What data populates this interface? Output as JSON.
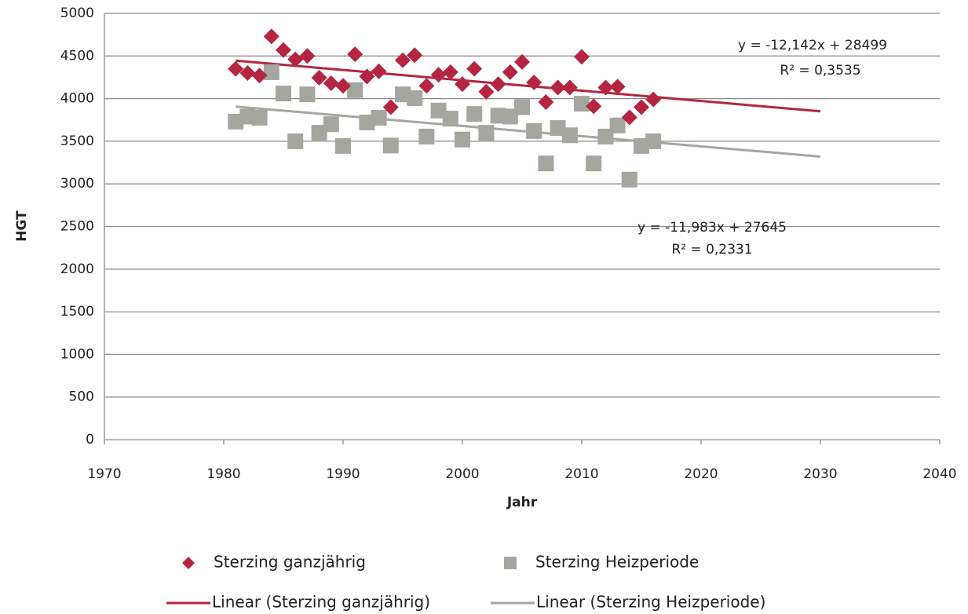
{
  "chart_data": {
    "type": "scatter",
    "x_label": "Jahr",
    "y_label": "HGT",
    "xlim": [
      1970,
      2040
    ],
    "xticks": [
      1970,
      1980,
      1990,
      2000,
      2010,
      2020,
      2030,
      2040
    ],
    "ylim": [
      0,
      5000
    ],
    "yticks": [
      0,
      500,
      1000,
      1500,
      2000,
      2500,
      3000,
      3500,
      4000,
      4500,
      5000
    ],
    "grid": true,
    "series": [
      {
        "name": "Sterzing ganzjährig",
        "color": "#b5253f",
        "marker": "diamond",
        "x": [
          1981,
          1982,
          1983,
          1984,
          1985,
          1986,
          1987,
          1988,
          1989,
          1990,
          1991,
          1992,
          1993,
          1994,
          1995,
          1996,
          1997,
          1998,
          1999,
          2000,
          2001,
          2002,
          2003,
          2004,
          2005,
          2006,
          2007,
          2008,
          2009,
          2010,
          2011,
          2012,
          2013,
          2014,
          2015,
          2016
        ],
        "values": [
          4350,
          4300,
          4270,
          4730,
          4570,
          4460,
          4500,
          4245,
          4180,
          4150,
          4520,
          4260,
          4320,
          3900,
          4450,
          4510,
          4150,
          4280,
          4310,
          4170,
          4350,
          4080,
          4170,
          4310,
          4430,
          4190,
          3960,
          4130,
          4130,
          4490,
          3910,
          4130,
          4140,
          3780,
          3900,
          3990
        ]
      },
      {
        "name": "Sterzing Heizperiode",
        "color": "#a6a6a0",
        "marker": "square",
        "x": [
          1981,
          1982,
          1983,
          1984,
          1985,
          1986,
          1987,
          1988,
          1989,
          1990,
          1991,
          1992,
          1993,
          1994,
          1995,
          1996,
          1997,
          1998,
          1999,
          2000,
          2001,
          2002,
          2003,
          2004,
          2005,
          2006,
          2007,
          2008,
          2009,
          2010,
          2011,
          2012,
          2013,
          2014,
          2015,
          2016
        ],
        "values": [
          3730,
          3790,
          3775,
          4310,
          4060,
          3500,
          4050,
          3600,
          3700,
          3445,
          4100,
          3720,
          3775,
          3450,
          4050,
          4005,
          3555,
          3860,
          3765,
          3520,
          3820,
          3600,
          3800,
          3790,
          3900,
          3620,
          3240,
          3655,
          3570,
          3940,
          3240,
          3555,
          3685,
          3050,
          3445,
          3500
        ]
      },
      {
        "name": "Linear (Sterzing ganzjährig)",
        "color": "#b5253f",
        "marker": "line",
        "x": [
          1981,
          2030
        ],
        "values": [
          4445,
          3851
        ]
      },
      {
        "name": "Linear (Sterzing Heizperiode)",
        "color": "#a6a6a0",
        "marker": "line",
        "x": [
          1981,
          2030
        ],
        "values": [
          3907,
          3320
        ]
      }
    ],
    "annotations": [
      "y = -12,142x + 28499",
      "R² = 0,3535",
      "y = -11,983x + 27645",
      "R² = 0,2331"
    ]
  }
}
